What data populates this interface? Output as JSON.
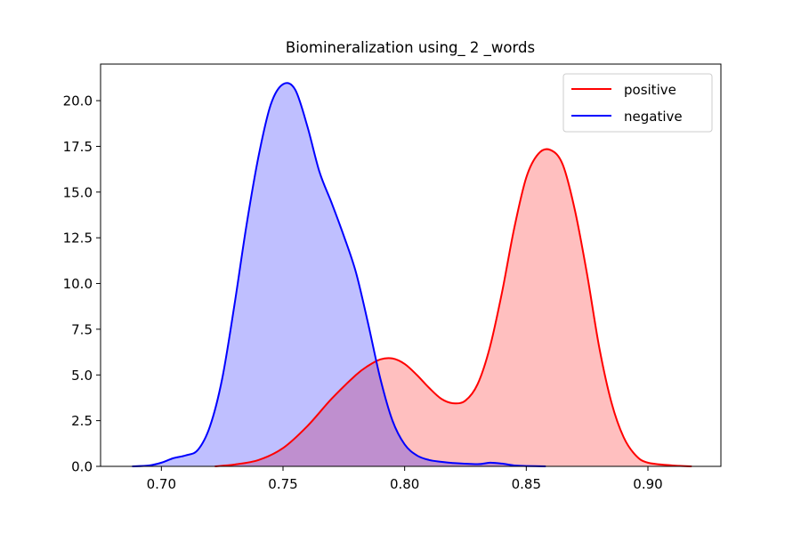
{
  "chart_data": {
    "type": "area",
    "title": "Biomineralization using_ 2 _words",
    "xlabel": "",
    "ylabel": "",
    "xlim": [
      0.675,
      0.93
    ],
    "ylim": [
      0,
      22
    ],
    "xticks": [
      0.7,
      0.75,
      0.8,
      0.85,
      0.9
    ],
    "xtick_labels": [
      "0.70",
      "0.75",
      "0.80",
      "0.85",
      "0.90"
    ],
    "yticks": [
      0,
      2.5,
      5,
      7.5,
      10,
      12.5,
      15,
      17.5,
      20
    ],
    "ytick_labels": [
      "0.0",
      "2.5",
      "5.0",
      "7.5",
      "10.0",
      "12.5",
      "15.0",
      "17.5",
      "20.0"
    ],
    "grid": false,
    "legend_position": "top-right",
    "series": [
      {
        "name": "positive",
        "color": "#ff0000",
        "fill": "#ffbfbf",
        "x": [
          0.722,
          0.73,
          0.74,
          0.75,
          0.76,
          0.77,
          0.78,
          0.785,
          0.79,
          0.795,
          0.8,
          0.805,
          0.81,
          0.815,
          0.82,
          0.825,
          0.83,
          0.835,
          0.84,
          0.845,
          0.85,
          0.855,
          0.86,
          0.865,
          0.87,
          0.875,
          0.88,
          0.885,
          0.89,
          0.895,
          0.9,
          0.91,
          0.918
        ],
        "y": [
          0.0,
          0.1,
          0.35,
          1.0,
          2.2,
          3.7,
          5.0,
          5.5,
          5.85,
          5.9,
          5.6,
          5.0,
          4.3,
          3.7,
          3.45,
          3.6,
          4.5,
          6.5,
          9.5,
          13.0,
          15.8,
          17.1,
          17.3,
          16.5,
          14.0,
          10.5,
          6.5,
          3.5,
          1.6,
          0.6,
          0.2,
          0.05,
          0.0
        ]
      },
      {
        "name": "negative",
        "color": "#0000ff",
        "fill": "#bfbfff",
        "x": [
          0.688,
          0.695,
          0.7,
          0.705,
          0.71,
          0.715,
          0.72,
          0.725,
          0.73,
          0.735,
          0.74,
          0.745,
          0.75,
          0.755,
          0.76,
          0.765,
          0.77,
          0.775,
          0.78,
          0.785,
          0.79,
          0.795,
          0.8,
          0.805,
          0.81,
          0.815,
          0.82,
          0.83,
          0.835,
          0.84,
          0.845,
          0.85,
          0.858
        ],
        "y": [
          0.0,
          0.05,
          0.2,
          0.45,
          0.6,
          0.9,
          2.2,
          4.8,
          8.8,
          13.2,
          17.0,
          19.8,
          20.9,
          20.6,
          18.6,
          16.1,
          14.4,
          12.6,
          10.6,
          7.8,
          4.8,
          2.5,
          1.2,
          0.6,
          0.35,
          0.25,
          0.18,
          0.12,
          0.2,
          0.15,
          0.05,
          0.02,
          0.0
        ]
      }
    ]
  }
}
